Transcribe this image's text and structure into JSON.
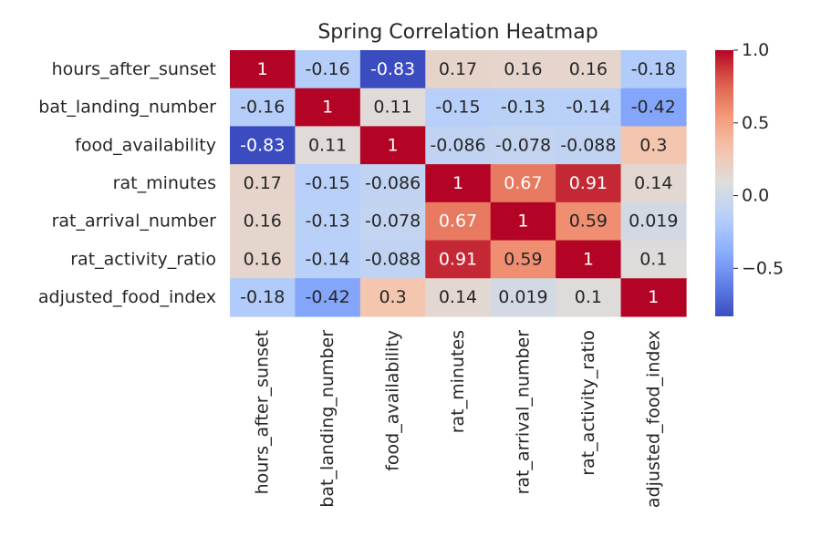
{
  "chart_data": {
    "type": "heatmap",
    "title": "Spring Correlation Heatmap",
    "rows": [
      "hours_after_sunset",
      "bat_landing_number",
      "food_availability",
      "rat_minutes",
      "rat_arrival_number",
      "rat_activity_ratio",
      "adjusted_food_index"
    ],
    "columns": [
      "hours_after_sunset",
      "bat_landing_number",
      "food_availability",
      "rat_minutes",
      "rat_arrival_number",
      "rat_activity_ratio",
      "adjusted_food_index"
    ],
    "values": [
      [
        1,
        -0.16,
        -0.83,
        0.17,
        0.16,
        0.16,
        -0.18
      ],
      [
        -0.16,
        1,
        0.11,
        -0.15,
        -0.13,
        -0.14,
        -0.42
      ],
      [
        -0.83,
        0.11,
        1,
        -0.086,
        -0.078,
        -0.088,
        0.3
      ],
      [
        0.17,
        -0.15,
        -0.086,
        1,
        0.67,
        0.91,
        0.14
      ],
      [
        0.16,
        -0.13,
        -0.078,
        0.67,
        1,
        0.59,
        0.019
      ],
      [
        0.16,
        -0.14,
        -0.088,
        0.91,
        0.59,
        1,
        0.1
      ],
      [
        -0.18,
        -0.42,
        0.3,
        0.14,
        0.019,
        0.1,
        1
      ]
    ],
    "value_labels": [
      [
        "1",
        "-0.16",
        "-0.83",
        "0.17",
        "0.16",
        "0.16",
        "-0.18"
      ],
      [
        "-0.16",
        "1",
        "0.11",
        "-0.15",
        "-0.13",
        "-0.14",
        "-0.42"
      ],
      [
        "-0.83",
        "0.11",
        "1",
        "-0.086",
        "-0.078",
        "-0.088",
        "0.3"
      ],
      [
        "0.17",
        "-0.15",
        "-0.086",
        "1",
        "0.67",
        "0.91",
        "0.14"
      ],
      [
        "0.16",
        "-0.13",
        "-0.078",
        "0.67",
        "1",
        "0.59",
        "0.019"
      ],
      [
        "0.16",
        "-0.14",
        "-0.088",
        "0.91",
        "0.59",
        "1",
        "0.1"
      ],
      [
        "-0.18",
        "-0.42",
        "0.3",
        "0.14",
        "0.019",
        "0.1",
        "1"
      ]
    ],
    "colormap": "coolwarm",
    "vmin": -0.83,
    "vmax": 1,
    "colorbar": {
      "ticks": [
        1.0,
        0.5,
        0.0,
        -0.5
      ],
      "tick_labels": [
        "1.0",
        "0.5",
        "0.0",
        "−0.5"
      ]
    },
    "grid": false
  }
}
